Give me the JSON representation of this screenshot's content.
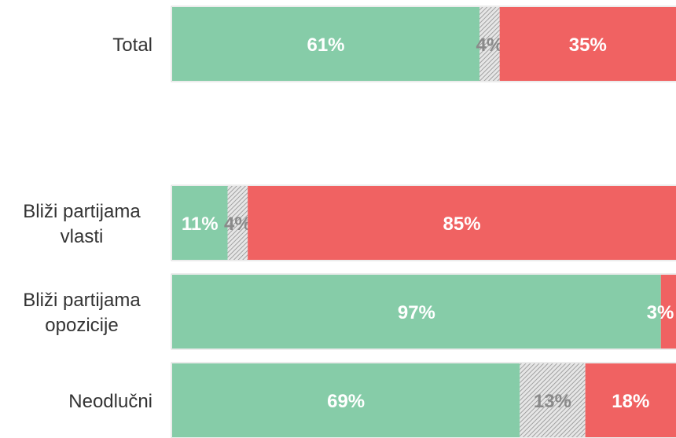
{
  "chart_data": {
    "type": "bar",
    "orientation": "horizontal",
    "stacked": true,
    "categories": [
      "Total",
      "Bliži partijama vlasti",
      "Bliži partijama opozicije",
      "Neodlučni"
    ],
    "category_lines": [
      [
        "Total"
      ],
      [
        "Bliži partijama",
        "vlasti"
      ],
      [
        "Bliži partijama",
        "opozicije"
      ],
      [
        "Neodlučni"
      ]
    ],
    "series": [
      {
        "values": [
          61,
          11,
          97,
          69
        ],
        "labels": [
          "61%",
          "11%",
          "97%",
          "69%"
        ],
        "color": "#86cca8"
      },
      {
        "values": [
          4,
          4,
          0,
          13
        ],
        "labels": [
          "4%",
          "4%",
          "",
          "13%"
        ],
        "color": "#bdbdbd",
        "pattern": "hatched"
      },
      {
        "values": [
          35,
          85,
          3,
          18
        ],
        "labels": [
          "35%",
          "85%",
          "3%",
          "18%"
        ],
        "color": "#f06262"
      }
    ],
    "xlim": [
      0,
      100
    ],
    "grid": false,
    "legend": "none"
  }
}
